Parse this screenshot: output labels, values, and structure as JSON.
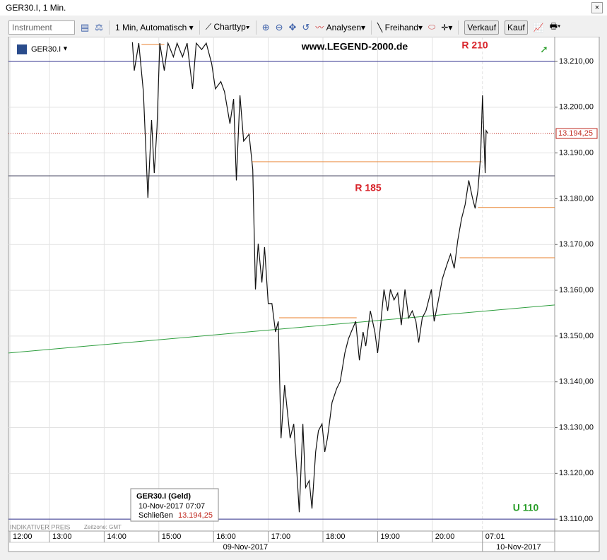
{
  "window": {
    "title": "GER30.I, 1 Min."
  },
  "toolbar": {
    "instrument_placeholder": "Instrument",
    "interval": "1 Min, Automatisch",
    "chart_type": "Charttyp",
    "analyses": "Analysen",
    "freehand": "Freihand",
    "sell": "Verkauf",
    "buy": "Kauf"
  },
  "chart_data": {
    "type": "line",
    "instrument": "GER30.I",
    "watermark": "www.LEGEND-2000.de",
    "color": "#111111",
    "x": [
      "14:31",
      "14:33",
      "14:38",
      "14:43",
      "14:48",
      "14:52",
      "14:55",
      "14:58",
      "15:01",
      "15:06",
      "15:10",
      "15:16",
      "15:20",
      "15:26",
      "15:31",
      "15:37",
      "15:41",
      "15:47",
      "15:52",
      "15:58",
      "16:02",
      "16:08",
      "16:12",
      "16:18",
      "16:22",
      "16:25",
      "16:29",
      "16:33",
      "16:39",
      "16:43",
      "16:46",
      "16:49",
      "16:53",
      "16:56",
      "17:00",
      "17:04",
      "17:08",
      "17:11",
      "17:14",
      "17:18",
      "17:24",
      "17:28",
      "17:31",
      "17:34",
      "17:38",
      "17:41",
      "17:45",
      "17:48",
      "17:52",
      "17:55",
      "17:59",
      "18:02",
      "18:05",
      "18:10",
      "18:15",
      "18:19",
      "18:24",
      "18:28",
      "18:31",
      "18:36",
      "18:40",
      "18:44",
      "18:47",
      "18:52",
      "18:57",
      "19:00",
      "19:04",
      "19:07",
      "19:11",
      "19:14",
      "19:18",
      "19:22",
      "19:26",
      "19:30",
      "19:34",
      "19:38",
      "19:42",
      "19:45",
      "19:49",
      "19:53",
      "19:59",
      "20:02",
      "20:06",
      "20:11",
      "20:16",
      "20:20",
      "20:24",
      "20:28",
      "20:32",
      "20:36",
      "20:40",
      "20:44",
      "20:47",
      "06:56",
      "06:59",
      "07:01",
      "07:04",
      "07:05",
      "07:07"
    ],
    "values": [
      13214.2,
      13208,
      13214,
      13203.4,
      13180.2,
      13197.2,
      13185.6,
      13195.6,
      13214,
      13208,
      13214,
      13211,
      13214,
      13211,
      13214,
      13204,
      13214,
      13212.6,
      13214,
      13209.5,
      13204,
      13205.6,
      13203.4,
      13196.4,
      13201.8,
      13184,
      13202.6,
      13192.6,
      13194.1,
      13186.4,
      13160.2,
      13170.2,
      13161.7,
      13169.4,
      13157.1,
      13157.1,
      13150.9,
      13153.2,
      13127.7,
      13139.3,
      13127.7,
      13130.8,
      13121.6,
      13111.5,
      13130.8,
      13116.9,
      13118.4,
      13112.3,
      13124.7,
      13129.3,
      13130.8,
      13124.7,
      13127.7,
      13135.5,
      13138.5,
      13140.1,
      13146.3,
      13149.4,
      13150.9,
      13153.2,
      13144.7,
      13150.9,
      13147.8,
      13155.5,
      13150.9,
      13146.3,
      13154,
      13160.2,
      13155.5,
      13160.2,
      13157.9,
      13159.4,
      13152.4,
      13160.2,
      13154,
      13155.5,
      13153.2,
      13148.6,
      13154,
      13155.5,
      13160.2,
      13153.2,
      13157.1,
      13162.5,
      13165.6,
      13167.9,
      13164.8,
      13171,
      13175.6,
      13178.7,
      13184,
      13180.2,
      13177.9,
      13181.8,
      13189.5,
      13202.6,
      13185.6,
      13194.9,
      13194.25
    ],
    "ylim": [
      13107.4,
      13215.4
    ],
    "yticks": [
      {
        "value": 13110,
        "label": "13.110,00"
      },
      {
        "value": 13120,
        "label": "13.120,00"
      },
      {
        "value": 13130,
        "label": "13.130,00"
      },
      {
        "value": 13140,
        "label": "13.140,00"
      },
      {
        "value": 13150,
        "label": "13.150,00"
      },
      {
        "value": 13160,
        "label": "13.160,00"
      },
      {
        "value": 13170,
        "label": "13.170,00"
      },
      {
        "value": 13180,
        "label": "13.180,00"
      },
      {
        "value": 13190,
        "label": "13.190,00"
      },
      {
        "value": 13200,
        "label": "13.200,00"
      },
      {
        "value": 13210,
        "label": "13.210,00"
      }
    ],
    "xticks": [
      "12:00",
      "13:00",
      "14:00",
      "15:00",
      "16:00",
      "17:00",
      "18:00",
      "19:00",
      "20:00",
      "07:01"
    ],
    "dates": [
      "09-Nov-2017",
      "10-Nov-2017"
    ],
    "grid": true,
    "last": {
      "value": 13194.25,
      "label": "13.194,25",
      "color": "#c0281e"
    },
    "hlines": [
      {
        "value": 13210,
        "color": "#33338f"
      },
      {
        "value": 13185,
        "color": "#4a4a66"
      },
      {
        "value": 13110,
        "color": "#33338f"
      }
    ],
    "segments": [
      {
        "value": 13213.7,
        "from": "14:41",
        "to": "15:06",
        "color": "#e8822e"
      },
      {
        "value": 13188.1,
        "from": "16:42",
        "to": "07:00",
        "color": "#e8822e"
      },
      {
        "value": 13154,
        "from": "17:12",
        "to": "18:37",
        "color": "#e8822e"
      },
      {
        "value": 13178.1,
        "from": "06:56",
        "color": "#e8822e"
      },
      {
        "value": 13167.1,
        "from": "20:30",
        "color": "#e8822e"
      }
    ],
    "trend": {
      "values": [
        13146.3,
        13156.8
      ],
      "color": "#2e9e3e"
    },
    "annotations": [
      {
        "text": "R 210",
        "color": "#d8232a"
      },
      {
        "text": "R 185",
        "color": "#d8232a"
      },
      {
        "text": "U 110",
        "color": "#2a9e2a"
      }
    ],
    "footer_note": "INDIKATIVER PREIS",
    "timezone": "Zeitzone: GMT",
    "tooltip": {
      "title": "GER30.I (Geld)",
      "time": "10-Nov-2017 07:07",
      "field": "Schließen"
    }
  }
}
